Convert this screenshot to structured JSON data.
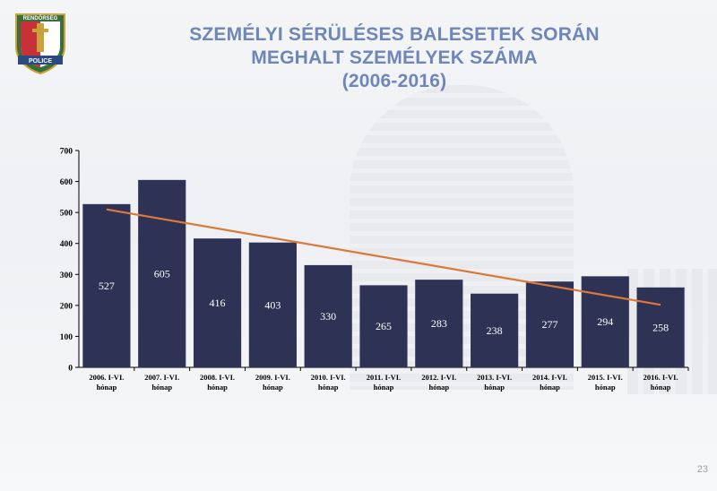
{
  "header": {
    "title_line1": "SZEMÉLYI SÉRÜLÉSES BALESETEK SORÁN",
    "title_line2": "MEGHALT SZEMÉLYEK SZÁMA",
    "title_line3": "(2006-2016)"
  },
  "logo": {
    "top_text": "RENDŐRSÉG",
    "bottom_text": "POLICE"
  },
  "page_number": "23",
  "chart_data": {
    "type": "bar",
    "categories": [
      [
        "2006. I-VI.",
        "hónap"
      ],
      [
        "2007. I-VI.",
        "hónap"
      ],
      [
        "2008. I-VI.",
        "hónap"
      ],
      [
        "2009. I-VI.",
        "hónap"
      ],
      [
        "2010. I-VI.",
        "hónap"
      ],
      [
        "2011. I-VI.",
        "hónap"
      ],
      [
        "2012. I-VI.",
        "hónap"
      ],
      [
        "2013. I-VI.",
        "hónap"
      ],
      [
        "2014. I-VI.",
        "hónap"
      ],
      [
        "2015. I-VI.",
        "hónap"
      ],
      [
        "2016. I-VI.",
        "hónap"
      ]
    ],
    "values": [
      527,
      605,
      416,
      403,
      330,
      265,
      283,
      238,
      277,
      294,
      258
    ],
    "data_labels": [
      "527",
      "605",
      "416",
      "403",
      "330",
      "265",
      "283",
      "238",
      "277",
      "294",
      "258"
    ],
    "trendline": {
      "type": "linear",
      "start": 510,
      "end": 202
    },
    "ylim": [
      0,
      700
    ],
    "yticks": [
      0,
      100,
      200,
      300,
      400,
      500,
      600,
      700
    ],
    "grid": false,
    "legend": "none",
    "colors": {
      "bar": "#2e3254",
      "trend": "#d9793a",
      "label": "#ffffff"
    }
  }
}
